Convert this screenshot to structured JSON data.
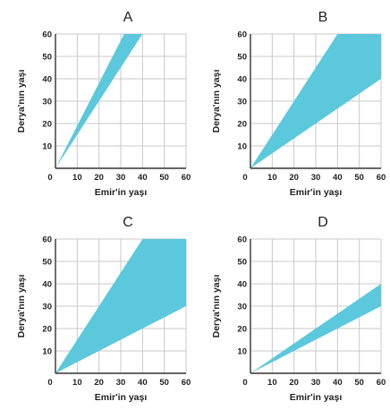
{
  "chart_data": [
    {
      "title": "A",
      "type": "area",
      "xlabel": "Emir'in yaşı",
      "ylabel": "Derya'nın yaşı",
      "xlim": [
        0,
        60
      ],
      "ylim": [
        0,
        60
      ],
      "xticks": [
        0,
        10,
        20,
        30,
        40,
        50,
        60
      ],
      "yticks": [
        10,
        20,
        30,
        40,
        50,
        60
      ],
      "grid": true,
      "band_upper": [
        [
          0,
          0
        ],
        [
          31.5,
          60
        ]
      ],
      "band_lower": [
        [
          0,
          0
        ],
        [
          40,
          60
        ]
      ],
      "fill_color": "#5bc8dc"
    },
    {
      "title": "B",
      "type": "area",
      "xlabel": "Emir'in yaşı",
      "ylabel": "Derya'nın yaşı",
      "xlim": [
        0,
        60
      ],
      "ylim": [
        0,
        60
      ],
      "xticks": [
        0,
        10,
        20,
        30,
        40,
        50,
        60
      ],
      "yticks": [
        10,
        20,
        30,
        40,
        50,
        60
      ],
      "grid": true,
      "band_upper": [
        [
          0,
          0
        ],
        [
          40,
          60
        ],
        [
          60,
          60
        ]
      ],
      "band_lower": [
        [
          0,
          0
        ],
        [
          60,
          40
        ]
      ],
      "fill_color": "#5bc8dc"
    },
    {
      "title": "C",
      "type": "area",
      "xlabel": "Emir'in yaşı",
      "ylabel": "Derya'nın yaşı",
      "xlim": [
        0,
        60
      ],
      "ylim": [
        0,
        60
      ],
      "xticks": [
        0,
        10,
        20,
        30,
        40,
        50,
        60
      ],
      "yticks": [
        10,
        20,
        30,
        40,
        50,
        60
      ],
      "grid": true,
      "band_upper": [
        [
          0,
          0
        ],
        [
          40,
          60
        ],
        [
          60,
          60
        ]
      ],
      "band_lower": [
        [
          0,
          0
        ],
        [
          60,
          30
        ]
      ],
      "fill_color": "#5bc8dc"
    },
    {
      "title": "D",
      "type": "area",
      "xlabel": "Emir'in yaşı",
      "ylabel": "Derya'nın yaşı",
      "xlim": [
        0,
        60
      ],
      "ylim": [
        0,
        60
      ],
      "xticks": [
        0,
        10,
        20,
        30,
        40,
        50,
        60
      ],
      "yticks": [
        10,
        20,
        30,
        40,
        50,
        60
      ],
      "grid": true,
      "band_upper": [
        [
          0,
          0
        ],
        [
          60,
          40
        ]
      ],
      "band_lower": [
        [
          0,
          0
        ],
        [
          60,
          30
        ]
      ],
      "fill_color": "#5bc8dc"
    }
  ]
}
